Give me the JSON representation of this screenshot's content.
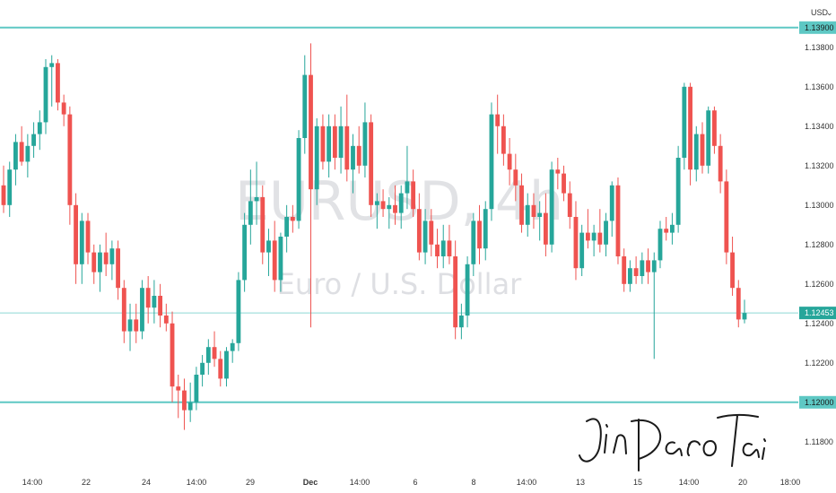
{
  "currency_label": "USD",
  "currency_caret": "⌄",
  "watermark": {
    "ticker": "EURUSD, 4h",
    "name": "Euro / U.S. Dollar"
  },
  "colors": {
    "up": "#26a69a",
    "down": "#ef5350",
    "level": "#5ec8c4",
    "price_line": "#26a69a"
  },
  "chart_data": {
    "type": "candlestick",
    "ylim": [
      1.1164,
      1.1404
    ],
    "y_ticks": [
      "1.13800",
      "1.13600",
      "1.13400",
      "1.13200",
      "1.13000",
      "1.12800",
      "1.12600",
      "1.12400",
      "1.12200",
      "1.11800"
    ],
    "x_ticks": [
      {
        "label": "14:00",
        "bold": false
      },
      {
        "label": "22",
        "bold": false
      },
      {
        "label": "24",
        "bold": false
      },
      {
        "label": "14:00",
        "bold": false
      },
      {
        "label": "29",
        "bold": false
      },
      {
        "label": "Dec",
        "bold": true
      },
      {
        "label": "14:00",
        "bold": false
      },
      {
        "label": "6",
        "bold": false
      },
      {
        "label": "8",
        "bold": false
      },
      {
        "label": "14:00",
        "bold": false
      },
      {
        "label": "13",
        "bold": false
      },
      {
        "label": "15",
        "bold": false
      },
      {
        "label": "14:00",
        "bold": false
      },
      {
        "label": "20",
        "bold": false
      },
      {
        "label": "18:00",
        "bold": false
      }
    ],
    "levels": [
      {
        "label": "1.13900",
        "value": 1.139
      },
      {
        "label": "1.12000",
        "value": 1.12
      }
    ],
    "last_price": {
      "label": "1.12453",
      "value": 1.12453
    },
    "candles": [
      [
        1.131,
        1.132,
        1.1296,
        1.13
      ],
      [
        1.13,
        1.1322,
        1.1294,
        1.1318
      ],
      [
        1.1318,
        1.1336,
        1.131,
        1.1332
      ],
      [
        1.1332,
        1.134,
        1.132,
        1.1322
      ],
      [
        1.1322,
        1.1336,
        1.1314,
        1.133
      ],
      [
        1.133,
        1.1342,
        1.1324,
        1.1336
      ],
      [
        1.1336,
        1.1348,
        1.1328,
        1.1342
      ],
      [
        1.1342,
        1.1374,
        1.1336,
        1.137
      ],
      [
        1.137,
        1.1376,
        1.135,
        1.1372
      ],
      [
        1.1372,
        1.1374,
        1.1348,
        1.1352
      ],
      [
        1.1352,
        1.1356,
        1.134,
        1.1346
      ],
      [
        1.1346,
        1.135,
        1.129,
        1.13
      ],
      [
        1.13,
        1.1306,
        1.126,
        1.127
      ],
      [
        1.127,
        1.1296,
        1.126,
        1.1292
      ],
      [
        1.1292,
        1.1296,
        1.127,
        1.1276
      ],
      [
        1.1276,
        1.128,
        1.126,
        1.1266
      ],
      [
        1.1266,
        1.128,
        1.1256,
        1.1276
      ],
      [
        1.1276,
        1.1286,
        1.1264,
        1.127
      ],
      [
        1.127,
        1.1282,
        1.1262,
        1.1278
      ],
      [
        1.1278,
        1.1282,
        1.1252,
        1.1258
      ],
      [
        1.1258,
        1.1262,
        1.123,
        1.1236
      ],
      [
        1.1236,
        1.125,
        1.1226,
        1.1242
      ],
      [
        1.1242,
        1.125,
        1.123,
        1.1236
      ],
      [
        1.1236,
        1.1262,
        1.1232,
        1.1258
      ],
      [
        1.1258,
        1.1264,
        1.124,
        1.1248
      ],
      [
        1.1248,
        1.1262,
        1.124,
        1.1254
      ],
      [
        1.1254,
        1.126,
        1.1238,
        1.1244
      ],
      [
        1.1244,
        1.125,
        1.1236,
        1.124
      ],
      [
        1.124,
        1.1246,
        1.12,
        1.1208
      ],
      [
        1.1208,
        1.1214,
        1.1192,
        1.1206
      ],
      [
        1.1206,
        1.1212,
        1.1186,
        1.1196
      ],
      [
        1.1196,
        1.121,
        1.119,
        1.12
      ],
      [
        1.12,
        1.1218,
        1.1196,
        1.1214
      ],
      [
        1.1214,
        1.1224,
        1.1208,
        1.122
      ],
      [
        1.122,
        1.1232,
        1.1214,
        1.1228
      ],
      [
        1.1228,
        1.1236,
        1.1218,
        1.1222
      ],
      [
        1.1222,
        1.1226,
        1.1208,
        1.1212
      ],
      [
        1.1212,
        1.1228,
        1.1208,
        1.1226
      ],
      [
        1.1226,
        1.1232,
        1.122,
        1.123
      ],
      [
        1.123,
        1.1266,
        1.1226,
        1.1262
      ],
      [
        1.1262,
        1.1296,
        1.1256,
        1.129
      ],
      [
        1.129,
        1.1318,
        1.128,
        1.1302
      ],
      [
        1.1302,
        1.1322,
        1.129,
        1.1304
      ],
      [
        1.1304,
        1.131,
        1.127,
        1.1276
      ],
      [
        1.1276,
        1.1288,
        1.1264,
        1.1282
      ],
      [
        1.1282,
        1.1292,
        1.1256,
        1.1262
      ],
      [
        1.1262,
        1.1286,
        1.1256,
        1.1284
      ],
      [
        1.1284,
        1.13,
        1.1276,
        1.1294
      ],
      [
        1.1294,
        1.13,
        1.1286,
        1.1292
      ],
      [
        1.1292,
        1.1338,
        1.1288,
        1.1334
      ],
      [
        1.1334,
        1.1376,
        1.1326,
        1.1366
      ],
      [
        1.1366,
        1.1382,
        1.1238,
        1.1308
      ],
      [
        1.1308,
        1.1344,
        1.13,
        1.134
      ],
      [
        1.134,
        1.1346,
        1.1318,
        1.1322
      ],
      [
        1.1322,
        1.1346,
        1.1314,
        1.134
      ],
      [
        1.134,
        1.1346,
        1.1318,
        1.1324
      ],
      [
        1.1324,
        1.135,
        1.1316,
        1.134
      ],
      [
        1.134,
        1.1356,
        1.1312,
        1.1318
      ],
      [
        1.1318,
        1.1336,
        1.1306,
        1.133
      ],
      [
        1.133,
        1.134,
        1.1316,
        1.132
      ],
      [
        1.132,
        1.1352,
        1.1314,
        1.1342
      ],
      [
        1.1342,
        1.1346,
        1.1294,
        1.13
      ],
      [
        1.13,
        1.1306,
        1.1288,
        1.1302
      ],
      [
        1.1302,
        1.1308,
        1.1294,
        1.1298
      ],
      [
        1.1298,
        1.1304,
        1.1288,
        1.13
      ],
      [
        1.13,
        1.131,
        1.129,
        1.1296
      ],
      [
        1.1296,
        1.131,
        1.1288,
        1.1306
      ],
      [
        1.1306,
        1.133,
        1.1298,
        1.1312
      ],
      [
        1.1312,
        1.1318,
        1.1294,
        1.1298
      ],
      [
        1.1298,
        1.1306,
        1.1272,
        1.1276
      ],
      [
        1.1276,
        1.1298,
        1.127,
        1.1292
      ],
      [
        1.1292,
        1.1298,
        1.1274,
        1.128
      ],
      [
        1.128,
        1.1288,
        1.1268,
        1.1274
      ],
      [
        1.1274,
        1.129,
        1.1268,
        1.1282
      ],
      [
        1.1282,
        1.129,
        1.127,
        1.1274
      ],
      [
        1.1274,
        1.1282,
        1.1232,
        1.1238
      ],
      [
        1.1238,
        1.125,
        1.1232,
        1.1244
      ],
      [
        1.1244,
        1.1274,
        1.1238,
        1.127
      ],
      [
        1.127,
        1.1296,
        1.1264,
        1.1292
      ],
      [
        1.1292,
        1.13,
        1.127,
        1.1278
      ],
      [
        1.1278,
        1.1302,
        1.1272,
        1.1298
      ],
      [
        1.1298,
        1.1352,
        1.1292,
        1.1346
      ],
      [
        1.1346,
        1.1356,
        1.1326,
        1.134
      ],
      [
        1.134,
        1.1346,
        1.132,
        1.1326
      ],
      [
        1.1326,
        1.1334,
        1.131,
        1.1318
      ],
      [
        1.1318,
        1.1326,
        1.1302,
        1.131
      ],
      [
        1.131,
        1.1316,
        1.1286,
        1.129
      ],
      [
        1.129,
        1.1306,
        1.1284,
        1.13
      ],
      [
        1.13,
        1.1306,
        1.1288,
        1.1294
      ],
      [
        1.1294,
        1.1302,
        1.1282,
        1.1296
      ],
      [
        1.1296,
        1.1306,
        1.1274,
        1.128
      ],
      [
        1.128,
        1.1322,
        1.1276,
        1.1318
      ],
      [
        1.1318,
        1.1324,
        1.1308,
        1.1316
      ],
      [
        1.1316,
        1.132,
        1.1302,
        1.1306
      ],
      [
        1.1306,
        1.1312,
        1.1288,
        1.1294
      ],
      [
        1.1294,
        1.1302,
        1.1262,
        1.1268
      ],
      [
        1.1268,
        1.129,
        1.1264,
        1.1286
      ],
      [
        1.1286,
        1.1298,
        1.1278,
        1.1282
      ],
      [
        1.1282,
        1.129,
        1.1274,
        1.1286
      ],
      [
        1.1286,
        1.1298,
        1.1276,
        1.128
      ],
      [
        1.128,
        1.1296,
        1.1274,
        1.1292
      ],
      [
        1.1292,
        1.1312,
        1.1284,
        1.131
      ],
      [
        1.131,
        1.1314,
        1.127,
        1.1274
      ],
      [
        1.1274,
        1.1278,
        1.1256,
        1.126
      ],
      [
        1.126,
        1.1272,
        1.1256,
        1.1268
      ],
      [
        1.1268,
        1.1274,
        1.126,
        1.1264
      ],
      [
        1.1264,
        1.1276,
        1.126,
        1.1272
      ],
      [
        1.1272,
        1.1278,
        1.126,
        1.1266
      ],
      [
        1.1266,
        1.1276,
        1.1222,
        1.1272
      ],
      [
        1.1272,
        1.1292,
        1.1268,
        1.1288
      ],
      [
        1.1288,
        1.1294,
        1.1282,
        1.1286
      ],
      [
        1.1286,
        1.1296,
        1.128,
        1.129
      ],
      [
        1.129,
        1.133,
        1.1286,
        1.1324
      ],
      [
        1.1324,
        1.1362,
        1.1318,
        1.136
      ],
      [
        1.136,
        1.1362,
        1.131,
        1.1318
      ],
      [
        1.1318,
        1.134,
        1.1312,
        1.1336
      ],
      [
        1.1336,
        1.1342,
        1.1316,
        1.132
      ],
      [
        1.132,
        1.135,
        1.1316,
        1.1348
      ],
      [
        1.1348,
        1.135,
        1.1326,
        1.133
      ],
      [
        1.133,
        1.1336,
        1.1306,
        1.1312
      ],
      [
        1.1312,
        1.1318,
        1.127,
        1.1276
      ],
      [
        1.1276,
        1.1284,
        1.1254,
        1.1258
      ],
      [
        1.1258,
        1.1262,
        1.1238,
        1.1242
      ],
      [
        1.1242,
        1.1252,
        1.124,
        1.12453
      ]
    ]
  }
}
